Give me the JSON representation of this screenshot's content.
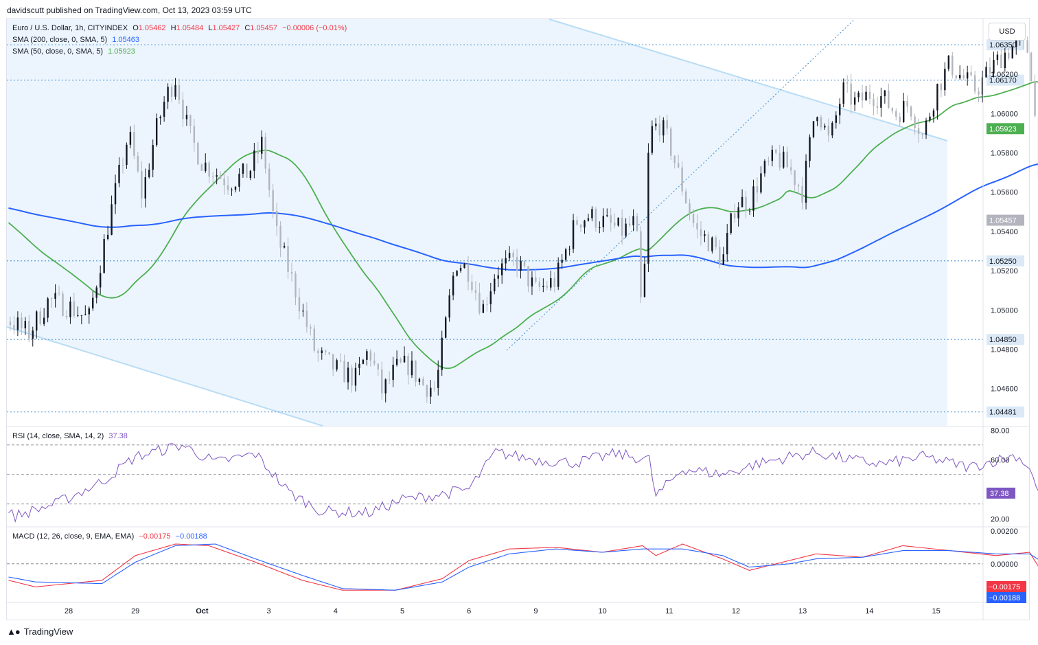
{
  "header": {
    "published": "davidscutt published on TradingView.com, Oct 13, 2023 03:59 UTC"
  },
  "currency_button": "USD",
  "brand": {
    "name": "TradingView"
  },
  "legend": {
    "main": {
      "symbol": "Euro / U.S. Dollar, 1h, CITYINDEX",
      "o_label": "O",
      "o": "1.05462",
      "h_label": "H",
      "h": "1.05484",
      "l_label": "L",
      "l": "1.05427",
      "c_label": "C",
      "c": "1.05457",
      "change": "−0.00006 (−0.01%)"
    },
    "sma200": {
      "label": "SMA (200, close, 0, SMA, 5)",
      "value": "1.05463"
    },
    "sma50": {
      "label": "SMA (50, close, 0, SMA, 5)",
      "value": "1.05923"
    },
    "rsi": {
      "label": "RSI (14, close, SMA, 14, 2)",
      "value": "37.38"
    },
    "macd": {
      "label": "MACD (12, 26, close, 9, EMA, EMA)",
      "macd": "−0.00175",
      "signal": "−0.00188"
    }
  },
  "colors": {
    "up": "#131722",
    "down": "#b2b5be",
    "sma200": "#2962ff",
    "sma50": "#4caf50",
    "rsi": "#7e57c2",
    "macd": "#f23645",
    "signal": "#2962ff",
    "channel": "#e9f3fd",
    "trend": "#b8dcf6",
    "level": "#5b9bd5"
  },
  "chart_data": [
    {
      "type": "candlestick",
      "title": "Euro / U.S. Dollar, 1h, CITYINDEX",
      "x_ticks": [
        "28",
        "29",
        "Oct",
        "3",
        "4",
        "5",
        "6",
        "9",
        "10",
        "11",
        "12",
        "13",
        "14",
        "15"
      ],
      "y_ticks": [
        "1.06400",
        "1.06200",
        "1.06000",
        "1.05800",
        "1.05600",
        "1.05400",
        "1.05200",
        "1.05000",
        "1.04800",
        "1.04600"
      ],
      "ylim": [
        1.0441,
        1.0648
      ],
      "horizontal_levels": [
        "1.06350",
        "1.06170",
        "1.05250",
        "1.04850",
        "1.04481"
      ],
      "price_badges": [
        {
          "value": "1.05923",
          "color": "#4caf50"
        },
        {
          "value": "1.05457",
          "color": "#b2b5be"
        }
      ],
      "anchors": [
        [
          "26",
          1.0555
        ],
        [
          "26.5",
          1.0552
        ],
        [
          "26.8",
          1.051
        ],
        [
          "27.1",
          1.0495
        ],
        [
          "27.4",
          1.0488
        ],
        [
          "27.7",
          1.0505
        ],
        [
          "28",
          1.0502
        ],
        [
          "28.3",
          1.0495
        ],
        [
          "28.6",
          1.0545
        ],
        [
          "28.9",
          1.059
        ],
        [
          "29.1",
          1.0558
        ],
        [
          "29.3",
          1.059
        ],
        [
          "29.45",
          1.0608
        ],
        [
          "29.6",
          1.0618
        ],
        [
          "29.8",
          1.059
        ],
        [
          "30",
          1.0575
        ],
        [
          "30.4",
          1.0565
        ],
        [
          "30.7",
          1.057
        ],
        [
          "30.9",
          1.0585
        ],
        [
          "31.1",
          1.054
        ],
        [
          "31.4",
          1.051
        ],
        [
          "31.7",
          1.0478
        ],
        [
          "32",
          1.047
        ],
        [
          "32.3",
          1.0465
        ],
        [
          "32.5",
          1.048
        ],
        [
          "32.7",
          1.0458
        ],
        [
          "32.9",
          1.047
        ],
        [
          "33.1",
          1.0472
        ],
        [
          "33.3",
          1.0462
        ],
        [
          "33.5",
          1.046
        ],
        [
          "33.8",
          1.0525
        ],
        [
          "34",
          1.052
        ],
        [
          "34.2",
          1.05
        ],
        [
          "34.4",
          1.052
        ],
        [
          "34.7",
          1.0525
        ],
        [
          "35",
          1.051
        ],
        [
          "35.3",
          1.0515
        ],
        [
          "35.6",
          1.0545
        ],
        [
          "35.8",
          1.0548
        ],
        [
          "36",
          1.0545
        ],
        [
          "36.3",
          1.054
        ],
        [
          "36.5",
          1.0545
        ],
        [
          "36.6",
          1.049
        ],
        [
          "36.7",
          1.059
        ],
        [
          "36.85",
          1.0595
        ],
        [
          "37",
          1.0585
        ],
        [
          "37.2",
          1.0562
        ],
        [
          "37.4",
          1.054
        ],
        [
          "37.6",
          1.0535
        ],
        [
          "37.8",
          1.0525
        ],
        [
          "38",
          1.0555
        ],
        [
          "38.2",
          1.0555
        ],
        [
          "38.4",
          1.057
        ],
        [
          "38.6",
          1.0578
        ],
        [
          "38.8",
          1.0572
        ],
        [
          "39",
          1.056
        ],
        [
          "39.2",
          1.0605
        ],
        [
          "39.4",
          1.0585
        ],
        [
          "39.6",
          1.0612
        ],
        [
          "39.8",
          1.0605
        ],
        [
          "40",
          1.061
        ],
        [
          "40.2",
          1.0608
        ],
        [
          "40.4",
          1.06
        ],
        [
          "40.6",
          1.0605
        ],
        [
          "40.8",
          1.0588
        ],
        [
          "41",
          1.0612
        ],
        [
          "41.2",
          1.0625
        ],
        [
          "41.4",
          1.0618
        ],
        [
          "41.6",
          1.0612
        ],
        [
          "41.8",
          1.0622
        ],
        [
          "42",
          1.063
        ],
        [
          "42.2",
          1.0635
        ],
        [
          "42.4",
          1.0632
        ],
        [
          "42.5",
          1.059
        ],
        [
          "42.6",
          1.0545
        ],
        [
          "42.8",
          1.0533
        ],
        [
          "42.9",
          1.0526
        ],
        [
          "43.05",
          1.053
        ],
        [
          "43.2",
          1.0538
        ],
        [
          "43.35",
          1.0546
        ]
      ],
      "candles_note": "approx. 1h candles generated along anchor path from Sep 26 to Oct 13"
    },
    {
      "type": "line",
      "title": "RSI (14, close, SMA, 14, 2)",
      "y_ticks": [
        "80.00",
        "60.00",
        "20.00"
      ],
      "ylim": [
        15,
        82
      ],
      "levels": [
        70,
        50,
        30
      ],
      "current": "37.38",
      "anchors": [
        [
          26,
          42
        ],
        [
          26.8,
          28
        ],
        [
          27.2,
          22
        ],
        [
          27.8,
          30
        ],
        [
          28.5,
          45
        ],
        [
          29,
          62
        ],
        [
          29.7,
          70
        ],
        [
          30.2,
          58
        ],
        [
          30.8,
          64
        ],
        [
          31.3,
          38
        ],
        [
          31.8,
          25
        ],
        [
          32.5,
          24
        ],
        [
          33,
          33
        ],
        [
          33.5,
          36
        ],
        [
          34,
          40
        ],
        [
          34.4,
          65
        ],
        [
          35,
          60
        ],
        [
          35.6,
          58
        ],
        [
          36.2,
          64
        ],
        [
          36.7,
          60
        ],
        [
          36.8,
          35
        ],
        [
          37.2,
          54
        ],
        [
          37.8,
          50
        ],
        [
          38.3,
          57
        ],
        [
          38.8,
          62
        ],
        [
          39.2,
          65
        ],
        [
          39.7,
          60
        ],
        [
          40.2,
          57
        ],
        [
          40.8,
          62
        ],
        [
          41.5,
          55
        ],
        [
          42.2,
          63
        ],
        [
          42.4,
          55
        ],
        [
          42.6,
          28
        ],
        [
          42.9,
          22
        ],
        [
          43.2,
          30
        ],
        [
          43.35,
          37.38
        ]
      ]
    },
    {
      "type": "line",
      "title": "MACD (12, 26, close, 9, EMA, EMA)",
      "y_ticks": [
        "0.00200",
        "0.00000"
      ],
      "ylim": [
        -0.0023,
        0.0022
      ],
      "current": [
        "−0.00175",
        "−0.00188"
      ],
      "series": [
        {
          "name": "MACD",
          "anchors": [
            [
              26,
              -0.0005
            ],
            [
              26.7,
              -0.0006
            ],
            [
              27.5,
              -0.0014
            ],
            [
              28.5,
              -0.001
            ],
            [
              29,
              0.0005
            ],
            [
              29.6,
              0.0012
            ],
            [
              30.1,
              0.0011
            ],
            [
              30.8,
              0.0001
            ],
            [
              31.5,
              -0.001
            ],
            [
              32.1,
              -0.0016
            ],
            [
              32.9,
              -0.0016
            ],
            [
              33.6,
              -0.0009
            ],
            [
              34,
              0.0002
            ],
            [
              34.6,
              0.0009
            ],
            [
              35.3,
              0.001
            ],
            [
              36,
              0.0007
            ],
            [
              36.6,
              0.0011
            ],
            [
              36.8,
              0.0005
            ],
            [
              37.2,
              0.0012
            ],
            [
              37.8,
              0.0003
            ],
            [
              38.2,
              -0.0004
            ],
            [
              38.8,
              0.0002
            ],
            [
              39.2,
              0.0006
            ],
            [
              39.9,
              0.0004
            ],
            [
              40.5,
              0.0011
            ],
            [
              41.2,
              0.0008
            ],
            [
              41.9,
              0.0005
            ],
            [
              42.4,
              0.0007
            ],
            [
              42.6,
              -0.0006
            ],
            [
              42.9,
              -0.0016
            ],
            [
              43.2,
              -0.0019
            ],
            [
              43.35,
              -0.00175
            ]
          ]
        },
        {
          "name": "Signal",
          "anchors": [
            [
              26,
              -0.0006
            ],
            [
              26.7,
              -0.0005
            ],
            [
              27.5,
              -0.0011
            ],
            [
              28.5,
              -0.0012
            ],
            [
              29,
              0.0001
            ],
            [
              29.6,
              0.0011
            ],
            [
              30.2,
              0.0012
            ],
            [
              30.8,
              0.0003
            ],
            [
              31.5,
              -0.0007
            ],
            [
              32.1,
              -0.0015
            ],
            [
              32.9,
              -0.0016
            ],
            [
              33.6,
              -0.0011
            ],
            [
              34,
              -0.0002
            ],
            [
              34.6,
              0.0006
            ],
            [
              35.3,
              0.0009
            ],
            [
              36,
              0.0007
            ],
            [
              36.6,
              0.0009
            ],
            [
              37.2,
              0.0009
            ],
            [
              37.8,
              0.0005
            ],
            [
              38.2,
              -0.0002
            ],
            [
              38.8,
              0.0
            ],
            [
              39.2,
              0.0003
            ],
            [
              39.9,
              0.0004
            ],
            [
              40.5,
              0.0008
            ],
            [
              41.2,
              0.0008
            ],
            [
              41.9,
              0.0006
            ],
            [
              42.4,
              0.0006
            ],
            [
              42.6,
              0.0001
            ],
            [
              42.9,
              -0.001
            ],
            [
              43.2,
              -0.0018
            ],
            [
              43.35,
              -0.00188
            ]
          ]
        }
      ]
    }
  ]
}
